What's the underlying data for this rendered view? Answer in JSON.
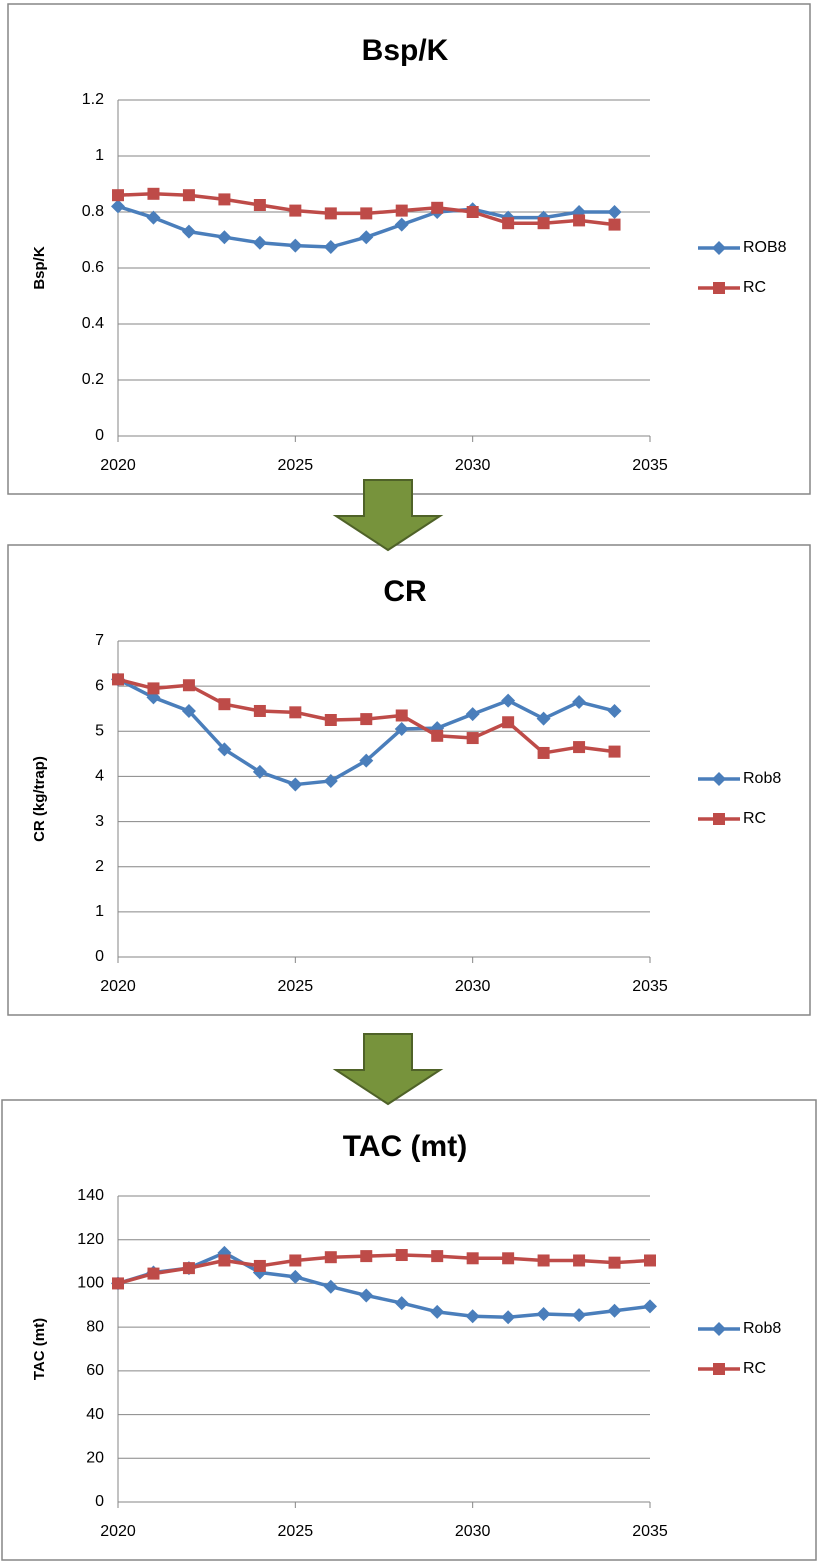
{
  "chart_data": [
    {
      "type": "line",
      "title": "Bsp/K",
      "y_label": "Bsp/K",
      "x": [
        2020,
        2021,
        2022,
        2023,
        2024,
        2025,
        2026,
        2027,
        2028,
        2029,
        2030,
        2031,
        2032,
        2033,
        2034
      ],
      "series": [
        {
          "name": "ROB8",
          "color": "#4a7ebb",
          "values": [
            0.82,
            0.78,
            0.73,
            0.71,
            0.69,
            0.68,
            0.675,
            0.71,
            0.755,
            0.8,
            0.81,
            0.78,
            0.78,
            0.8,
            0.8
          ]
        },
        {
          "name": "RC",
          "color": "#be4b48",
          "values": [
            0.86,
            0.865,
            0.86,
            0.845,
            0.825,
            0.805,
            0.795,
            0.795,
            0.805,
            0.815,
            0.8,
            0.76,
            0.76,
            0.77,
            0.755
          ]
        }
      ],
      "xlim": [
        2020,
        2035
      ],
      "xticks": [
        2020,
        2025,
        2030,
        2035
      ],
      "ylim": [
        0,
        1.2
      ],
      "yticks": [
        0,
        0.2,
        0.4,
        0.6,
        0.8,
        1,
        1.2
      ],
      "grid": true,
      "legend": "right"
    },
    {
      "type": "line",
      "title": "CR",
      "y_label": "CR (kg/trap)",
      "x": [
        2020,
        2021,
        2022,
        2023,
        2024,
        2025,
        2026,
        2027,
        2028,
        2029,
        2030,
        2031,
        2032,
        2033,
        2034
      ],
      "series": [
        {
          "name": "Rob8",
          "color": "#4a7ebb",
          "values": [
            6.15,
            5.75,
            5.45,
            4.6,
            4.1,
            3.82,
            3.9,
            4.35,
            5.05,
            5.07,
            5.38,
            5.68,
            5.28,
            5.65,
            5.45
          ]
        },
        {
          "name": "RC",
          "color": "#be4b48",
          "values": [
            6.15,
            5.95,
            6.02,
            5.6,
            5.45,
            5.42,
            5.25,
            5.27,
            5.35,
            4.9,
            4.85,
            5.2,
            4.52,
            4.65,
            4.55
          ]
        }
      ],
      "xlim": [
        2020,
        2035
      ],
      "xticks": [
        2020,
        2025,
        2030,
        2035
      ],
      "ylim": [
        0,
        7
      ],
      "yticks": [
        0,
        1,
        2,
        3,
        4,
        5,
        6,
        7
      ],
      "grid": true,
      "legend": "right"
    },
    {
      "type": "line",
      "title": "TAC (mt)",
      "y_label": "TAC (mt)",
      "x": [
        2020,
        2021,
        2022,
        2023,
        2024,
        2025,
        2026,
        2027,
        2028,
        2029,
        2030,
        2031,
        2032,
        2033,
        2034,
        2035
      ],
      "series": [
        {
          "name": "Rob8",
          "color": "#4a7ebb",
          "values": [
            100,
            105,
            107,
            114,
            105,
            103,
            98.5,
            94.5,
            91,
            87,
            85,
            84.5,
            86,
            85.5,
            87.5,
            89.5
          ]
        },
        {
          "name": "RC",
          "color": "#be4b48",
          "values": [
            100,
            104.5,
            107,
            110.5,
            108,
            110.5,
            112,
            112.5,
            113,
            112.5,
            111.5,
            111.5,
            110.5,
            110.5,
            109.5,
            110.5
          ]
        }
      ],
      "xlim": [
        2020,
        2035
      ],
      "xticks": [
        2020,
        2025,
        2030,
        2035
      ],
      "ylim": [
        0,
        140
      ],
      "yticks": [
        0,
        20,
        40,
        60,
        80,
        100,
        120,
        140
      ],
      "grid": true,
      "legend": "right"
    }
  ]
}
